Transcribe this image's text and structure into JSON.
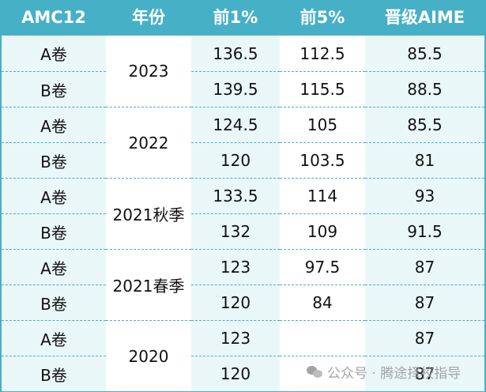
{
  "table": {
    "headers": [
      "AMC12",
      "年份",
      "前1%",
      "前5%",
      "晋级AIME"
    ],
    "groups": [
      {
        "year": "2023",
        "rows": [
          {
            "paper": "A卷",
            "top1": "136.5",
            "top5": "112.5",
            "aime": "85.5"
          },
          {
            "paper": "B卷",
            "top1": "139.5",
            "top5": "115.5",
            "aime": "88.5"
          }
        ]
      },
      {
        "year": "2022",
        "rows": [
          {
            "paper": "A卷",
            "top1": "124.5",
            "top5": "105",
            "aime": "85.5"
          },
          {
            "paper": "B卷",
            "top1": "120",
            "top5": "103.5",
            "aime": "81"
          }
        ]
      },
      {
        "year": "2021秋季",
        "rows": [
          {
            "paper": "A卷",
            "top1": "133.5",
            "top5": "114",
            "aime": "93"
          },
          {
            "paper": "B卷",
            "top1": "132",
            "top5": "109",
            "aime": "91.5"
          }
        ]
      },
      {
        "year": "2021春季",
        "rows": [
          {
            "paper": "A卷",
            "top1": "123",
            "top5": "97.5",
            "aime": "87"
          },
          {
            "paper": "B卷",
            "top1": "120",
            "top5": "84",
            "aime": "87"
          }
        ]
      },
      {
        "year": "2020",
        "rows": [
          {
            "paper": "A卷",
            "top1": "123",
            "top5": "",
            "aime": "87"
          },
          {
            "paper": "B卷",
            "top1": "120",
            "top5": "",
            "aime": "87"
          }
        ]
      }
    ]
  },
  "watermark": {
    "text": "公众号 · 腾途择校指导",
    "icon": "wechat-icon"
  },
  "colors": {
    "header": "#46b0c7",
    "tint": "#eaf7f9",
    "border": "#46b0c7"
  }
}
